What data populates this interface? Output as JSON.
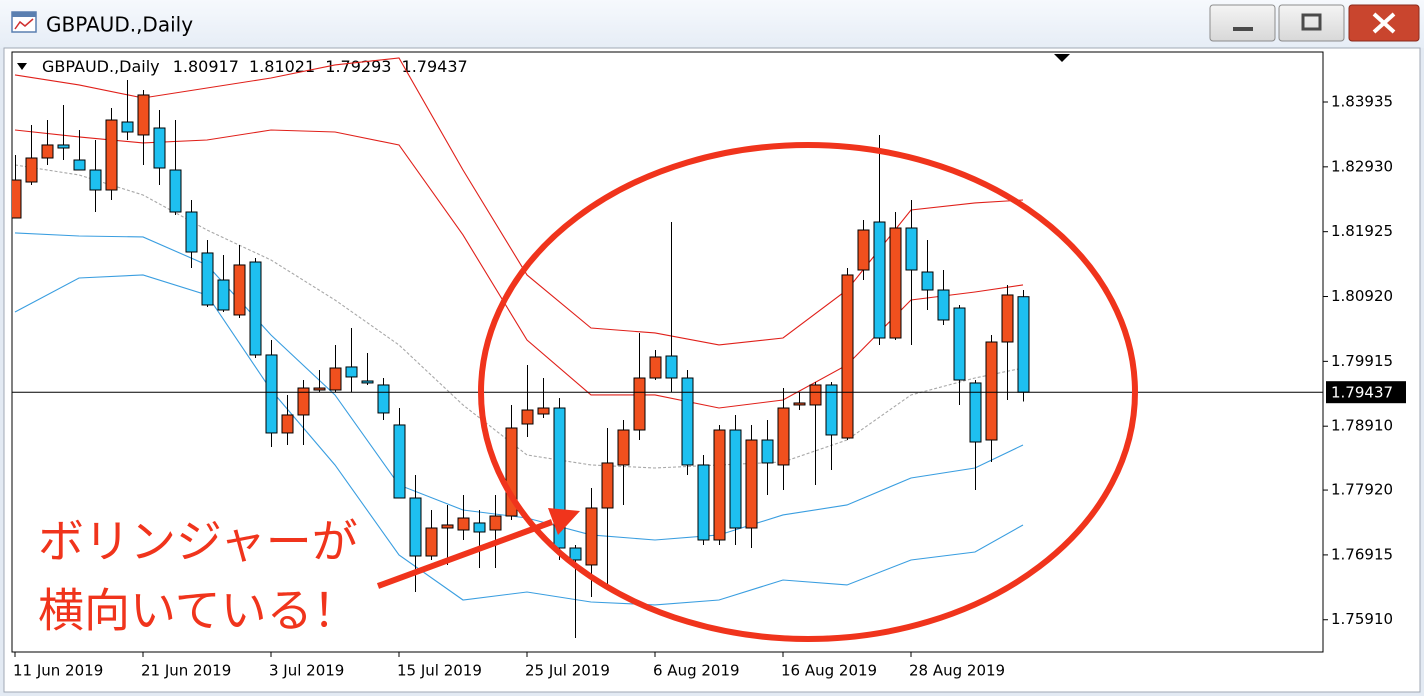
{
  "chart_data": {
    "type": "candlestick",
    "title": "GBPAUD.,Daily",
    "categories": [
      "11 Jun 2019",
      null,
      null,
      null,
      null,
      null,
      null,
      null,
      "21 Jun 2019",
      null,
      null,
      null,
      null,
      null,
      null,
      null,
      "3 Jul 2019",
      null,
      null,
      null,
      null,
      null,
      null,
      null,
      "15 Jul 2019",
      null,
      null,
      null,
      null,
      null,
      null,
      null,
      "25 Jul 2019",
      null,
      null,
      null,
      null,
      null,
      null,
      null,
      "6 Aug 2019",
      null,
      null,
      null,
      null,
      null,
      null,
      null,
      "16 Aug 2019",
      null,
      null,
      null,
      null,
      null,
      null,
      null,
      "28 Aug 2019",
      null,
      null,
      null,
      null,
      null,
      null,
      null
    ],
    "open": [
      1.82137,
      1.82695,
      1.83067,
      1.83269,
      1.83036,
      1.82881,
      1.82571,
      1.83625,
      1.83424,
      1.83532,
      1.82881,
      1.8223,
      1.81595,
      1.81176,
      1.80634,
      1.81455,
      1.80014,
      1.78805,
      1.79084,
      1.79471,
      1.79471,
      1.79828,
      1.79611,
      1.79549,
      1.78929,
      1.77797,
      1.76898,
      1.77332,
      1.77301,
      1.7741,
      1.77301,
      1.77518,
      1.78944,
      1.79099,
      1.79192,
      1.77022,
      1.76759,
      1.77642,
      1.78309,
      1.78851,
      1.79657,
      1.79998,
      1.79657,
      1.78309,
      1.77146,
      1.78851,
      1.77332,
      1.78696,
      1.78309,
      1.79239,
      1.79239,
      1.79549,
      1.78727,
      1.81331,
      1.82075,
      1.80277,
      1.81982,
      1.813,
      1.81021,
      1.80742,
      1.7958,
      1.78696,
      1.80215,
      1.80917
    ],
    "high": [
      1.83114,
      1.83579,
      1.83656,
      1.83889,
      1.83501,
      1.83346,
      1.83842,
      1.84276,
      1.84121,
      1.83811,
      1.83656,
      1.82416,
      1.81796,
      1.81564,
      1.81719,
      1.81517,
      1.80246,
      1.79394,
      1.79626,
      1.79781,
      1.80169,
      1.80432,
      1.80045,
      1.79657,
      1.79192,
      1.78154,
      1.77611,
      1.77689,
      1.77844,
      1.77611,
      1.77844,
      1.79239,
      1.79859,
      1.79657,
      1.79347,
      1.77069,
      1.77952,
      1.78882,
      1.79006,
      1.80355,
      1.80091,
      1.82075,
      1.79781,
      1.78464,
      1.78929,
      1.79084,
      1.78929,
      1.79006,
      1.79502,
      1.7944,
      1.79595,
      1.79595,
      1.81362,
      1.82106,
      1.83424,
      1.8223,
      1.82416,
      1.81796,
      1.81331,
      1.80789,
      1.79626,
      1.80324,
      1.81099,
      1.81021
    ],
    "low": [
      1.82137,
      1.82649,
      1.82959,
      1.83036,
      1.82881,
      1.8223,
      1.82416,
      1.83346,
      1.82959,
      1.82649,
      1.82184,
      1.81362,
      1.80758,
      1.8068,
      1.80587,
      1.79967,
      1.78588,
      1.78619,
      1.78619,
      1.7944,
      1.7944,
      1.7944,
      1.79549,
      1.79006,
      1.77797,
      1.7634,
      1.76836,
      1.76759,
      1.77146,
      1.76712,
      1.76712,
      1.77456,
      1.78743,
      1.79037,
      1.76836,
      1.75627,
      1.76263,
      1.76371,
      1.77689,
      1.78696,
      1.79626,
      1.7944,
      1.78154,
      1.77069,
      1.77069,
      1.77069,
      1.77022,
      1.77844,
      1.77921,
      1.79161,
      1.77999,
      1.78231,
      1.78696,
      1.81176,
      1.80169,
      1.80246,
      1.80169,
      1.80711,
      1.80479,
      1.79239,
      1.77921,
      1.78355,
      1.79316,
      1.79293
    ],
    "close": [
      1.82726,
      1.83067,
      1.83269,
      1.83222,
      1.82881,
      1.82571,
      1.83656,
      1.8347,
      1.84044,
      1.82912,
      1.8223,
      1.8161,
      1.80789,
      1.80711,
      1.81409,
      1.80014,
      1.78805,
      1.79084,
      1.79502,
      1.79502,
      1.79812,
      1.79673,
      1.7958,
      1.79115,
      1.77797,
      1.76898,
      1.77332,
      1.77379,
      1.77487,
      1.7727,
      1.77518,
      1.78882,
      1.79161,
      1.79192,
      1.77022,
      1.76836,
      1.77642,
      1.7834,
      1.78851,
      1.79657,
      1.79983,
      1.79657,
      1.78309,
      1.77146,
      1.78851,
      1.77332,
      1.78696,
      1.7834,
      1.79192,
      1.7927,
      1.79549,
      1.78774,
      1.81254,
      1.81951,
      1.80277,
      1.81982,
      1.81331,
      1.81021,
      1.80556,
      1.79626,
      1.78665,
      1.80215,
      1.80944,
      1.79437
    ],
    "up_color": "#f0501e",
    "down_color": "#1ec0f0",
    "bands": [
      {
        "color": "#e0201a",
        "dash": false,
        "x": [
          0,
          4,
          8,
          12,
          16,
          20,
          24,
          28,
          32,
          36,
          40,
          44,
          48,
          52,
          56,
          60,
          63
        ],
        "values": [
          1.84354,
          1.84199,
          1.83997,
          1.84152,
          1.84307,
          1.84509,
          1.84617,
          1.82881,
          1.81254,
          1.80432,
          1.80355,
          1.80169,
          1.80277,
          1.81021,
          1.82261,
          1.8237,
          1.82416
        ]
      },
      {
        "color": "#e0201a",
        "dash": false,
        "x": [
          0,
          4,
          8,
          12,
          16,
          20,
          24,
          28,
          32,
          36,
          40,
          44,
          48,
          52,
          56,
          60,
          63
        ],
        "values": [
          1.83501,
          1.83393,
          1.833,
          1.83346,
          1.83501,
          1.8347,
          1.83269,
          1.81874,
          1.80246,
          1.79394,
          1.79394,
          1.79192,
          1.79316,
          1.79859,
          1.80866,
          1.8099,
          1.81099
        ]
      },
      {
        "color": "#a8a8a8",
        "dash": true,
        "x": [
          0,
          4,
          8,
          12,
          16,
          20,
          24,
          28,
          32,
          36,
          40,
          44,
          48,
          52,
          56,
          60,
          63
        ],
        "values": [
          1.82959,
          1.82804,
          1.82494,
          1.81951,
          1.81486,
          1.80866,
          1.80169,
          1.79239,
          1.78464,
          1.78309,
          1.78262,
          1.78309,
          1.78355,
          1.78696,
          1.79394,
          1.79657,
          1.79812
        ]
      },
      {
        "color": "#3a9ee0",
        "dash": false,
        "x": [
          0,
          4,
          8,
          12,
          16,
          20,
          24,
          28,
          32,
          36,
          40,
          44,
          48,
          52,
          56,
          60,
          63
        ],
        "values": [
          1.81905,
          1.81858,
          1.81843,
          1.81409,
          1.80324,
          1.79394,
          1.77999,
          1.77611,
          1.77487,
          1.77224,
          1.77146,
          1.77224,
          1.77534,
          1.77689,
          1.78107,
          1.78262,
          1.78619
        ]
      },
      {
        "color": "#3a9ee0",
        "dash": false,
        "x": [
          0,
          4,
          8,
          12,
          16,
          20,
          24,
          28,
          32,
          36,
          40,
          44,
          48,
          52,
          56,
          60,
          63
        ],
        "values": [
          1.8068,
          1.81207,
          1.81254,
          1.80944,
          1.79471,
          1.78309,
          1.76914,
          1.76216,
          1.7634,
          1.76185,
          1.76139,
          1.76216,
          1.76526,
          1.76449,
          1.76836,
          1.7696,
          1.77379
        ]
      }
    ],
    "ylim": [
      1.7541,
      1.8471
    ],
    "yticks": [
      {
        "value": 1.7591,
        "label": "1.75910"
      },
      1.76915,
      {
        "value": 1.7792,
        "label": "1.77920"
      },
      {
        "value": 1.7891,
        "label": "1.78910"
      },
      1.79915,
      {
        "value": 1.8092,
        "label": "1.80920"
      },
      1.81925,
      {
        "value": 1.8293,
        "label": "1.82930"
      },
      1.83935
    ],
    "grid": false,
    "annotations": [
      "ボリンジャーが",
      "横向いている！"
    ],
    "annotation_color": "#f0341c"
  }
}
